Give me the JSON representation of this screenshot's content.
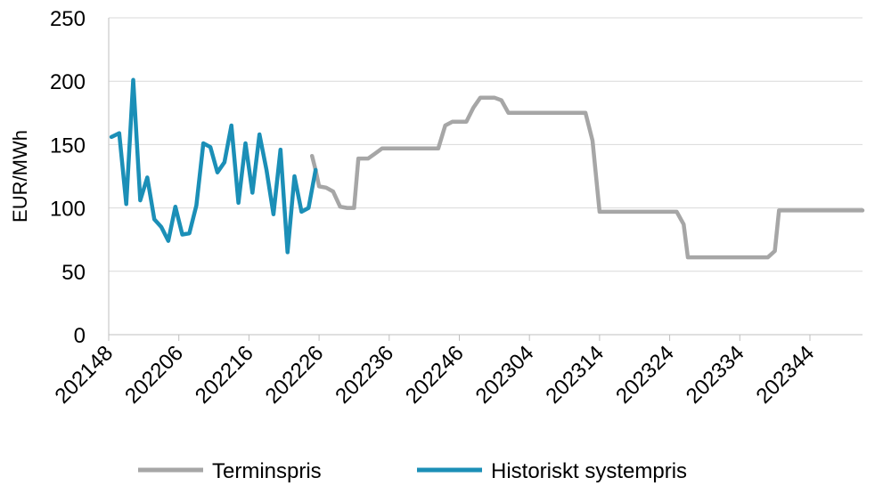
{
  "chart_data": {
    "type": "line",
    "ylabel": "EUR/MWh",
    "xlabel": "",
    "ylim": [
      0,
      250
    ],
    "yticks": [
      "0",
      "50",
      "100",
      "150",
      "200",
      "250"
    ],
    "xticks": [
      "202148",
      "202206",
      "202216",
      "202226",
      "202236",
      "202246",
      "202304",
      "202314",
      "202324",
      "202334",
      "202344"
    ],
    "grid": true,
    "legend_position": "bottom",
    "series": [
      {
        "name": "Terminspris",
        "color": "#a6a6a6",
        "points": [
          [
            29.0,
            141
          ],
          [
            29.5,
            130
          ],
          [
            30.0,
            117
          ],
          [
            31.0,
            116
          ],
          [
            32.0,
            113
          ],
          [
            33.0,
            101
          ],
          [
            34.0,
            100
          ],
          [
            35.0,
            100
          ],
          [
            35.6,
            139
          ],
          [
            37.0,
            139
          ],
          [
            38.0,
            143
          ],
          [
            39.0,
            147
          ],
          [
            47.0,
            147
          ],
          [
            48.0,
            165
          ],
          [
            49.0,
            168
          ],
          [
            51.0,
            168
          ],
          [
            52.0,
            179
          ],
          [
            53.0,
            187
          ],
          [
            55.0,
            187
          ],
          [
            56.0,
            185
          ],
          [
            57.0,
            175
          ],
          [
            68.0,
            175
          ],
          [
            69.0,
            153
          ],
          [
            70.0,
            97
          ],
          [
            81.0,
            97
          ],
          [
            82.0,
            87
          ],
          [
            82.6,
            61
          ],
          [
            94.0,
            61
          ],
          [
            95.0,
            66
          ],
          [
            95.6,
            98
          ],
          [
            107.5,
            98
          ]
        ]
      },
      {
        "name": "Historiskt systempris",
        "color": "#1b8fb7",
        "points": [
          [
            0.4,
            156
          ],
          [
            1.5,
            159
          ],
          [
            2.5,
            103
          ],
          [
            3.5,
            201
          ],
          [
            4.5,
            106
          ],
          [
            5.5,
            124
          ],
          [
            6.5,
            91
          ],
          [
            7.5,
            85
          ],
          [
            8.5,
            74
          ],
          [
            9.5,
            101
          ],
          [
            10.5,
            79
          ],
          [
            11.5,
            80
          ],
          [
            12.5,
            102
          ],
          [
            13.5,
            151
          ],
          [
            14.5,
            148
          ],
          [
            15.5,
            128
          ],
          [
            16.5,
            136
          ],
          [
            17.5,
            165
          ],
          [
            18.5,
            104
          ],
          [
            19.5,
            151
          ],
          [
            20.5,
            112
          ],
          [
            21.5,
            158
          ],
          [
            22.5,
            130
          ],
          [
            23.5,
            95
          ],
          [
            24.5,
            146
          ],
          [
            25.5,
            65
          ],
          [
            26.5,
            125
          ],
          [
            27.5,
            97
          ],
          [
            28.5,
            100
          ],
          [
            29.5,
            130
          ]
        ]
      }
    ]
  }
}
